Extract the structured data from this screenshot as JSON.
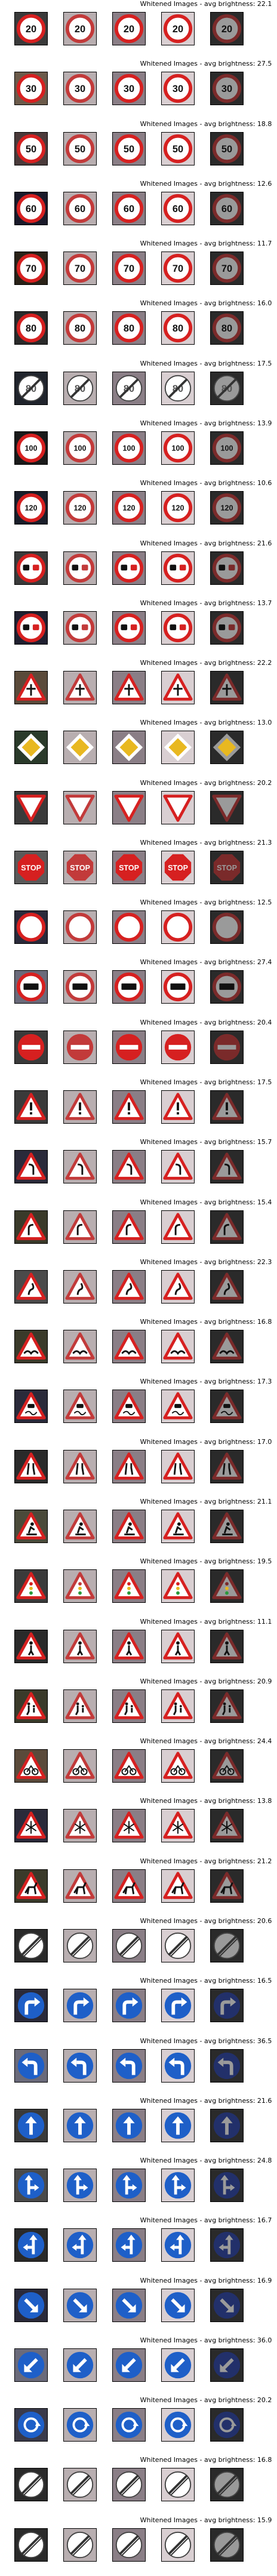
{
  "title_prefix": "Whitened Images - avg brightness:",
  "rows": [
    {
      "brightness": "22.1",
      "sign": "speed-20-sign",
      "bg": "#3a3a3a"
    },
    {
      "brightness": "27.5",
      "sign": "speed-30-sign",
      "bg": "#6b5a4a"
    },
    {
      "brightness": "18.8",
      "sign": "speed-50-sign",
      "bg": "#4a3a3a"
    },
    {
      "brightness": "12.6",
      "sign": "speed-60-sign",
      "bg": "#1a1a2a"
    },
    {
      "brightness": "11.7",
      "sign": "speed-70-sign",
      "bg": "#2a2218"
    },
    {
      "brightness": "16.0",
      "sign": "speed-80-sign",
      "bg": "#2a2a2a"
    },
    {
      "brightness": "17.5",
      "sign": "end-speed-80-sign",
      "bg": "#20242c"
    },
    {
      "brightness": "13.9",
      "sign": "speed-100-sign",
      "bg": "#1a1a1a"
    },
    {
      "brightness": "10.6",
      "sign": "speed-120-sign",
      "bg": "#1a1e2a"
    },
    {
      "brightness": "21.6",
      "sign": "no-passing-sign",
      "bg": "#3a3a3a"
    },
    {
      "brightness": "13.7",
      "sign": "no-passing-trucks-sign",
      "bg": "#202030"
    },
    {
      "brightness": "22.2",
      "sign": "right-of-way-sign",
      "bg": "#5a4a3a"
    },
    {
      "brightness": "13.0",
      "sign": "priority-road-sign",
      "bg": "#2a3a2a"
    },
    {
      "brightness": "20.2",
      "sign": "yield-sign",
      "bg": "#3a3a3a"
    },
    {
      "brightness": "21.3",
      "sign": "stop-sign",
      "bg": "#5a5a5a"
    },
    {
      "brightness": "12.5",
      "sign": "no-vehicles-sign",
      "bg": "#2a2a3a"
    },
    {
      "brightness": "27.4",
      "sign": "no-trucks-sign",
      "bg": "#6a6a7a"
    },
    {
      "brightness": "20.4",
      "sign": "no-entry-sign",
      "bg": "#3a3a3a"
    },
    {
      "brightness": "17.5",
      "sign": "general-caution-sign",
      "bg": "#3a3a3a"
    },
    {
      "brightness": "15.7",
      "sign": "curve-left-sign",
      "bg": "#2a2a3a"
    },
    {
      "brightness": "15.4",
      "sign": "curve-right-sign",
      "bg": "#3a3a2a"
    },
    {
      "brightness": "22.3",
      "sign": "double-curve-sign",
      "bg": "#4a4a4a"
    },
    {
      "brightness": "16.8",
      "sign": "bumpy-road-sign",
      "bg": "#3a3a2a"
    },
    {
      "brightness": "17.3",
      "sign": "slippery-road-sign",
      "bg": "#2a2a3a"
    },
    {
      "brightness": "17.0",
      "sign": "road-narrows-sign",
      "bg": "#2a2a2a"
    },
    {
      "brightness": "21.1",
      "sign": "road-work-sign",
      "bg": "#4a4a3a"
    },
    {
      "brightness": "19.5",
      "sign": "traffic-signals-sign",
      "bg": "#3a3a3a"
    },
    {
      "brightness": "11.1",
      "sign": "pedestrians-sign",
      "bg": "#2a2a2a"
    },
    {
      "brightness": "20.9",
      "sign": "children-crossing-sign",
      "bg": "#3a3a2a"
    },
    {
      "brightness": "24.4",
      "sign": "bicycles-crossing-sign",
      "bg": "#5a4a3a"
    },
    {
      "brightness": "13.8",
      "sign": "ice-snow-sign",
      "bg": "#2a2a3a"
    },
    {
      "brightness": "21.2",
      "sign": "wild-animals-sign",
      "bg": "#3a3a2a"
    },
    {
      "brightness": "20.6",
      "sign": "end-all-limits-sign",
      "bg": "#2a2a2a"
    },
    {
      "brightness": "16.5",
      "sign": "turn-right-sign",
      "bg": "#2a2a3a"
    },
    {
      "brightness": "36.5",
      "sign": "turn-left-sign",
      "bg": "#6a6a7a"
    },
    {
      "brightness": "21.6",
      "sign": "ahead-only-sign",
      "bg": "#3a3a3a"
    },
    {
      "brightness": "24.8",
      "sign": "straight-or-right-sign",
      "bg": "#4a4a4a"
    },
    {
      "brightness": "16.7",
      "sign": "straight-or-left-sign",
      "bg": "#2a2a2a"
    },
    {
      "brightness": "16.9",
      "sign": "keep-right-sign",
      "bg": "#2a2a3a"
    },
    {
      "brightness": "36.0",
      "sign": "keep-left-sign",
      "bg": "#6a6a7a"
    },
    {
      "brightness": "20.2",
      "sign": "roundabout-sign",
      "bg": "#3a3a4a"
    },
    {
      "brightness": "16.8",
      "sign": "end-no-passing-sign",
      "bg": "#2a2a2a"
    },
    {
      "brightness": "15.9",
      "sign": "end-no-passing-trucks-sign",
      "bg": "#2a2a2a"
    }
  ]
}
